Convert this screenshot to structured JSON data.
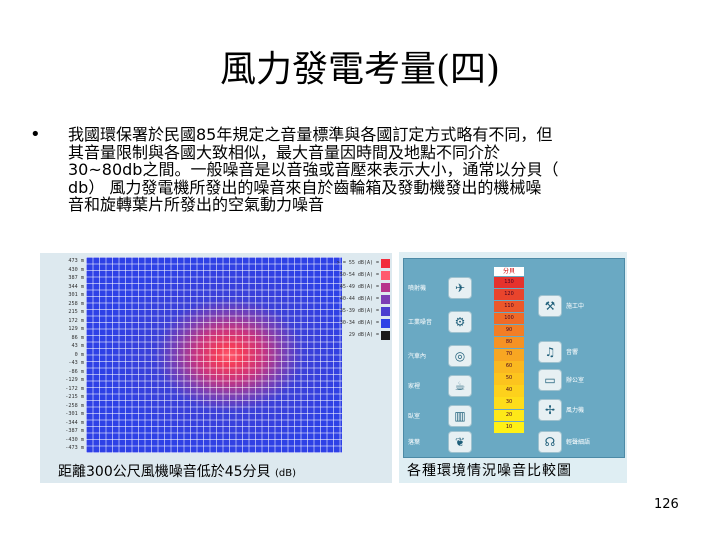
{
  "slide": {
    "title": "風力發電考量(四)",
    "bullet": "•",
    "body_lines": [
      "我國環保署於民國85年規定之音量標準與各國訂定方式略有不同，但",
      "其音量限制與各國大致相似，最大音量因時間及地點不同介於",
      "30~80db之間。一般噪音是以音強或音壓來表示大小，通常以分貝（",
      "db） 風力發電機所發出的噪音來自於齒輪箱及發動機發出的機械噪",
      "音和旋轉葉片所發出的空氣動力噪音"
    ],
    "page_number": "126"
  },
  "left_figure": {
    "caption": "距離300公尺風機噪音低於45分貝",
    "caption_unit": "(dB)",
    "axis_labels": [
      "473 m",
      "430 m",
      "387 m",
      "344 m",
      "301 m",
      "258 m",
      "215 m",
      "172 m",
      "129 m",
      "86 m",
      "43 m",
      "0 m",
      "-43 m",
      "-86 m",
      "-129 m",
      "-172 m",
      "-215 m",
      "-258 m",
      "-301 m",
      "-344 m",
      "-387 m",
      "-430 m",
      "-473 m"
    ],
    "legend": [
      {
        "label": "> = 55 dB(A) =",
        "color": "#f22c3c"
      },
      {
        "label": "50-54 dB(A) =",
        "color": "#ff5a6e"
      },
      {
        "label": "45-49 dB(A) =",
        "color": "#b7348c"
      },
      {
        "label": "40-44 dB(A) =",
        "color": "#7c3db5"
      },
      {
        "label": "35-39 dB(A) =",
        "color": "#4b3fd0"
      },
      {
        "label": "30-34 dB(A) =",
        "color": "#2e41e6"
      },
      {
        "label": "29 dB(A) =",
        "color": "#1a1a1a"
      }
    ]
  },
  "right_figure": {
    "caption": "各種環境情況噪音比較圖",
    "scale_header": "分貝",
    "scale_values": [
      "130",
      "120",
      "110",
      "100",
      "90",
      "80",
      "70",
      "60",
      "50",
      "40",
      "30",
      "20",
      "10"
    ],
    "scale_colors": [
      "#e5322d",
      "#e9442c",
      "#ec572a",
      "#ef6b28",
      "#f27e26",
      "#f59224",
      "#f8a622",
      "#fab820",
      "#fcc41e",
      "#fdd11c",
      "#fedd1a",
      "#fee818",
      "#fff016"
    ],
    "left_items": [
      {
        "label": "噴射機",
        "icon": "✈"
      },
      {
        "label": "工業噪音",
        "icon": "⚙"
      },
      {
        "label": "汽車內",
        "icon": "◎"
      },
      {
        "label": "家裡",
        "icon": "☕"
      },
      {
        "label": "臥室",
        "icon": "▥"
      },
      {
        "label": "落葉",
        "icon": "❦"
      }
    ],
    "right_items": [
      {
        "label": "施工中",
        "icon": "⚒"
      },
      {
        "label": "音響",
        "icon": "♫"
      },
      {
        "label": "辦公室",
        "icon": "▭"
      },
      {
        "label": "風力機",
        "icon": "✢"
      },
      {
        "label": "輕聲細語",
        "icon": "☊"
      }
    ]
  }
}
